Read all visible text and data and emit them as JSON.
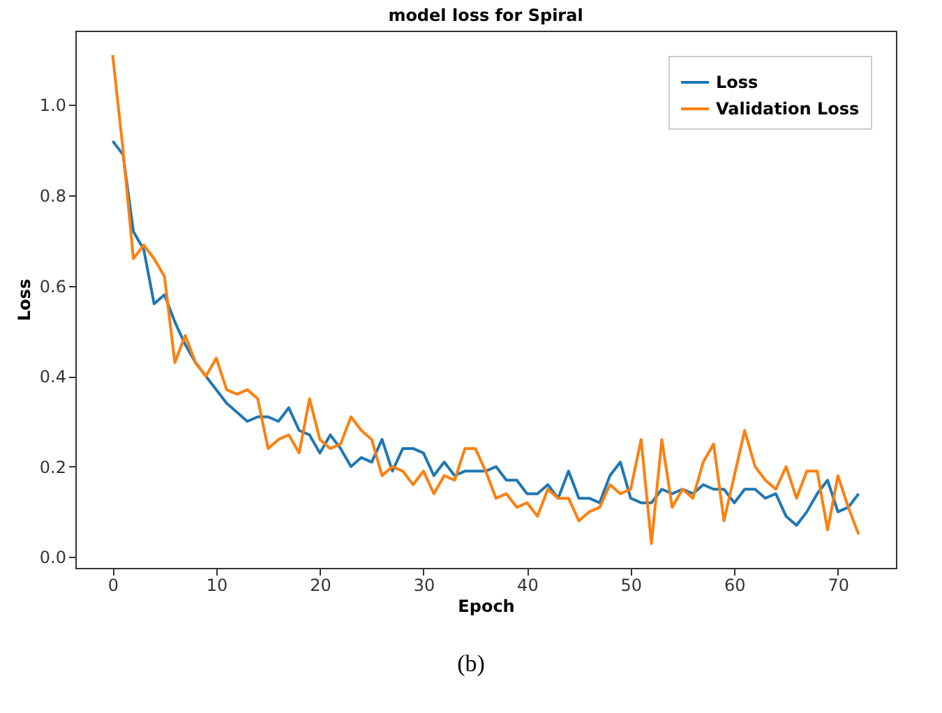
{
  "chart_data": {
    "type": "line",
    "title": "model loss for Spiral",
    "xlabel": "Epoch",
    "ylabel": "Loss",
    "annotations": [
      "(b)"
    ],
    "x": [
      0,
      1,
      2,
      3,
      4,
      5,
      6,
      7,
      8,
      9,
      10,
      11,
      12,
      13,
      14,
      15,
      16,
      17,
      18,
      19,
      20,
      21,
      22,
      23,
      24,
      25,
      26,
      27,
      28,
      29,
      30,
      31,
      32,
      33,
      34,
      35,
      36,
      37,
      38,
      39,
      40,
      41,
      42,
      43,
      44,
      45,
      46,
      47,
      48,
      49,
      50,
      51,
      52,
      53,
      54,
      55,
      56,
      57,
      58,
      59,
      60,
      61,
      62,
      63,
      64,
      65,
      66,
      67,
      68,
      69,
      70,
      71,
      72
    ],
    "series": [
      {
        "name": "Loss",
        "color": "#1f77b4",
        "values": [
          0.92,
          0.89,
          0.72,
          0.68,
          0.56,
          0.58,
          0.52,
          0.47,
          0.43,
          0.4,
          0.37,
          0.34,
          0.32,
          0.3,
          0.31,
          0.31,
          0.3,
          0.33,
          0.28,
          0.27,
          0.23,
          0.27,
          0.24,
          0.2,
          0.22,
          0.21,
          0.26,
          0.19,
          0.24,
          0.24,
          0.23,
          0.18,
          0.21,
          0.18,
          0.19,
          0.19,
          0.19,
          0.2,
          0.17,
          0.17,
          0.14,
          0.14,
          0.16,
          0.13,
          0.19,
          0.13,
          0.13,
          0.12,
          0.18,
          0.21,
          0.13,
          0.12,
          0.12,
          0.15,
          0.14,
          0.15,
          0.14,
          0.16,
          0.15,
          0.15,
          0.12,
          0.15,
          0.15,
          0.13,
          0.14,
          0.09,
          0.07,
          0.1,
          0.14,
          0.17,
          0.1,
          0.11,
          0.14
        ]
      },
      {
        "name": "Validation Loss",
        "color": "#ff7f0e",
        "values": [
          1.11,
          0.9,
          0.66,
          0.69,
          0.66,
          0.62,
          0.43,
          0.49,
          0.43,
          0.4,
          0.44,
          0.37,
          0.36,
          0.37,
          0.35,
          0.24,
          0.26,
          0.27,
          0.23,
          0.35,
          0.26,
          0.24,
          0.25,
          0.31,
          0.28,
          0.26,
          0.18,
          0.2,
          0.19,
          0.16,
          0.19,
          0.14,
          0.18,
          0.17,
          0.24,
          0.24,
          0.19,
          0.13,
          0.14,
          0.11,
          0.12,
          0.09,
          0.15,
          0.13,
          0.13,
          0.08,
          0.1,
          0.11,
          0.16,
          0.14,
          0.15,
          0.26,
          0.03,
          0.26,
          0.11,
          0.15,
          0.13,
          0.21,
          0.25,
          0.08,
          0.18,
          0.28,
          0.2,
          0.17,
          0.15,
          0.2,
          0.13,
          0.19,
          0.19,
          0.06,
          0.18,
          0.11,
          0.05
        ]
      }
    ],
    "xlim": [
      -3.6,
      75.6
    ],
    "xticks": [
      0,
      10,
      20,
      30,
      40,
      50,
      60,
      70
    ],
    "ylim": [
      -0.024,
      1.164
    ],
    "yticks": [
      {
        "value": 0,
        "label": "0.0"
      },
      {
        "value": 0.2,
        "label": "0.2"
      },
      {
        "value": 0.4,
        "label": "0.4"
      },
      {
        "value": 0.6,
        "label": "0.6"
      },
      {
        "value": 0.8,
        "label": "0.8"
      },
      {
        "value": 1,
        "label": "1.0"
      }
    ],
    "legend": "top right",
    "grid": false,
    "line_style": "solid",
    "marker": "none"
  }
}
